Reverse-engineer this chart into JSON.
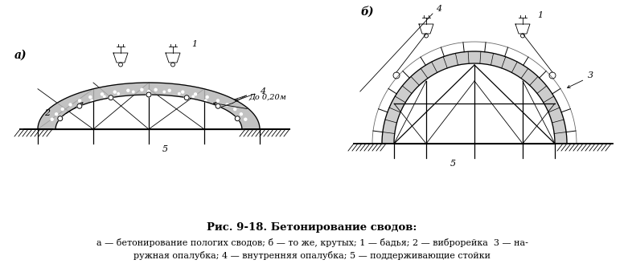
{
  "bg_color": "#ffffff",
  "line_color": "#000000",
  "title": "Рис. 9-18. Бетонирование сводов:",
  "caption_line1": "а — бетонирование пологих сводов; б — то же, крутых; 1 — бадья; 2 — виброрейка  3 — на-",
  "caption_line2": "ружная опалубка; 4 — внутренняя опалубка; 5 — поддерживающие стойки",
  "fig_width": 7.76,
  "fig_height": 3.39,
  "dpi": 100
}
